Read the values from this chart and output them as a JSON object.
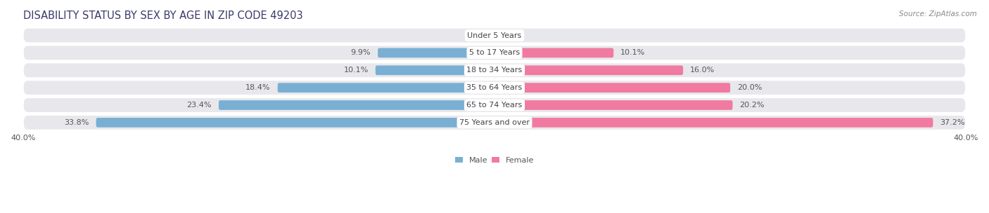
{
  "title": "DISABILITY STATUS BY SEX BY AGE IN ZIP CODE 49203",
  "source": "Source: ZipAtlas.com",
  "categories": [
    "Under 5 Years",
    "5 to 17 Years",
    "18 to 34 Years",
    "35 to 64 Years",
    "65 to 74 Years",
    "75 Years and over"
  ],
  "male_values": [
    0.0,
    9.9,
    10.1,
    18.4,
    23.4,
    33.8
  ],
  "female_values": [
    0.0,
    10.1,
    16.0,
    20.0,
    20.2,
    37.2
  ],
  "male_color": "#7aafd4",
  "female_color": "#f07aa0",
  "axis_max": 40.0,
  "legend_male": "Male",
  "legend_female": "Female",
  "title_fontsize": 10.5,
  "label_fontsize": 8.0,
  "category_fontsize": 8.0,
  "source_fontsize": 7.5,
  "title_color": "#3a3a6a",
  "label_color": "#555555",
  "category_color": "#444444",
  "row_bg_color": "#e8e8ec",
  "bar_height": 0.55
}
